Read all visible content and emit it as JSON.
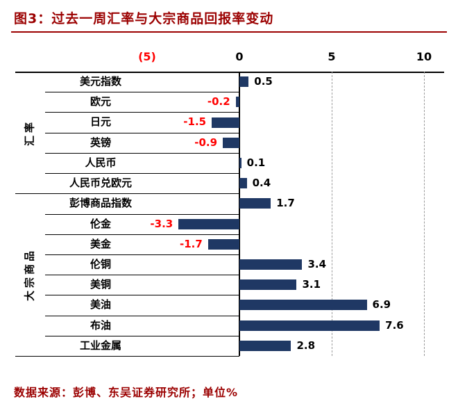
{
  "header": {
    "title": "图3：过去一周汇率与大宗商品回报率变动"
  },
  "footer": {
    "source": "数据来源：彭博、东吴证券研究所；单位%"
  },
  "colors": {
    "accent": "#9b0000",
    "bar": "#1f3864",
    "negative_label": "#ff0000",
    "axis": "#000000",
    "gridline": "#999999"
  },
  "chart_data": {
    "type": "bar",
    "orientation": "horizontal",
    "title": "过去一周汇率与大宗商品回报率变动",
    "unit": "%",
    "xlim": [
      -5,
      10
    ],
    "x_ticks": [
      -5,
      0,
      5,
      10
    ],
    "x_tick_labels": [
      "(5)",
      "0",
      "5",
      "10"
    ],
    "axis_position": "top",
    "grid": "vertical dashed at positive ticks",
    "legend": "none",
    "bar_color": "#1f3864",
    "negative_color": "#ff0000",
    "groups": [
      {
        "name": "汇率",
        "items": [
          {
            "label": "美元指数",
            "value": 0.5
          },
          {
            "label": "欧元",
            "value": -0.2
          },
          {
            "label": "日元",
            "value": -1.5
          },
          {
            "label": "英镑",
            "value": -0.9
          },
          {
            "label": "人民币",
            "value": 0.1
          },
          {
            "label": "人民币兑欧元",
            "value": 0.4
          }
        ]
      },
      {
        "name": "大宗商品",
        "items": [
          {
            "label": "彭博商品指数",
            "value": 1.7
          },
          {
            "label": "伦金",
            "value": -3.3
          },
          {
            "label": "美金",
            "value": -1.7
          },
          {
            "label": "伦铜",
            "value": 3.4
          },
          {
            "label": "美铜",
            "value": 3.1
          },
          {
            "label": "美油",
            "value": 6.9
          },
          {
            "label": "布油",
            "value": 7.6
          },
          {
            "label": "工业金属",
            "value": 2.8
          }
        ]
      }
    ]
  }
}
